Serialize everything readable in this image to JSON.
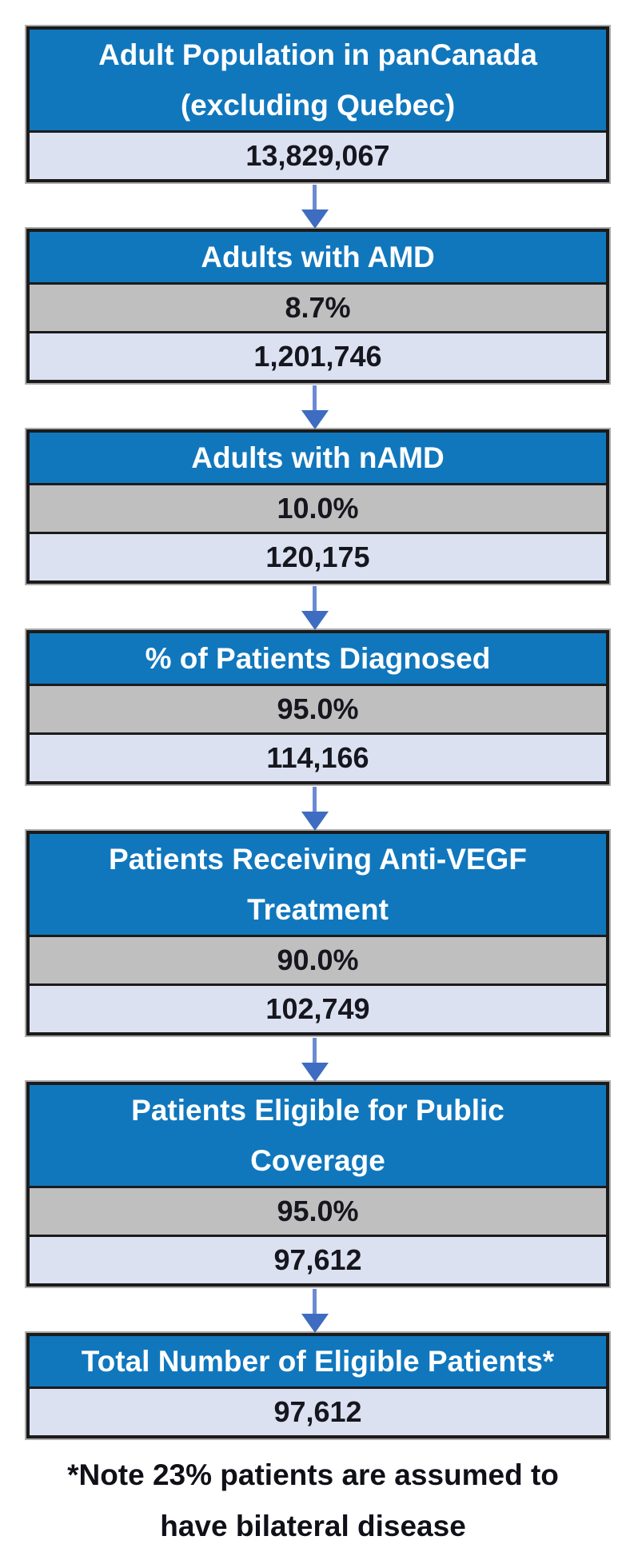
{
  "flowchart": {
    "steps": [
      {
        "title_lines": [
          "Adult Population in panCanada",
          "(excluding Quebec)"
        ],
        "percent": null,
        "value": "13,829,067"
      },
      {
        "title_lines": [
          "Adults with AMD"
        ],
        "percent": "8.7%",
        "value": "1,201,746"
      },
      {
        "title_lines": [
          "Adults with nAMD"
        ],
        "percent": "10.0%",
        "value": "120,175"
      },
      {
        "title_lines": [
          "% of Patients Diagnosed"
        ],
        "percent": "95.0%",
        "value": "114,166"
      },
      {
        "title_lines": [
          "Patients Receiving Anti-VEGF",
          "Treatment"
        ],
        "percent": "90.0%",
        "value": "102,749"
      },
      {
        "title_lines": [
          "Patients Eligible for Public",
          "Coverage"
        ],
        "percent": "95.0%",
        "value": "97,612"
      },
      {
        "title_lines": [
          "Total Number of Eligible Patients*"
        ],
        "percent": null,
        "value": "97,612"
      }
    ],
    "footnote_lines": [
      "*Note 23% patients are assumed to",
      "have bilateral disease"
    ],
    "colors": {
      "header_bg": "#1077bd",
      "header_text": "#ffffff",
      "percent_bg": "#bfbfbf",
      "value_bg": "#dbe1f1",
      "value_text": "#16161e",
      "border": "#1b1b1b",
      "box_halo": "#ababab",
      "arrow_stem": "#6b8bd3",
      "arrow_head": "#3e6cc0",
      "footnote_text": "#101018"
    }
  }
}
